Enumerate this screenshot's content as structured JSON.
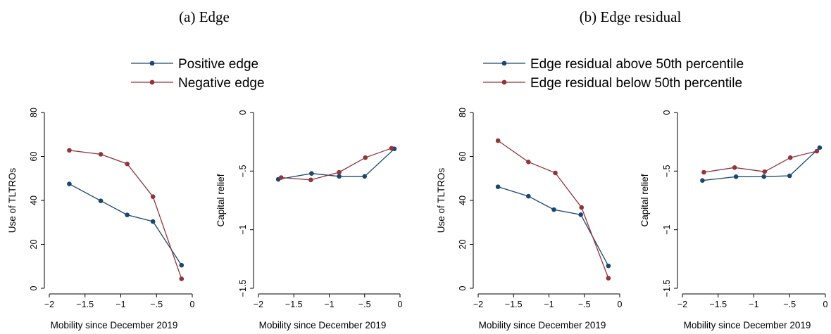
{
  "colors": {
    "navy": "#1a476f",
    "maroon": "#90353b"
  },
  "panels": [
    {
      "title": "(a) Edge",
      "legend": [
        {
          "label": "Positive edge",
          "color": "#1a476f"
        },
        {
          "label": "Negative edge",
          "color": "#90353b"
        }
      ]
    },
    {
      "title": "(b) Edge residual",
      "legend": [
        {
          "label": "Edge residual above 50th percentile",
          "color": "#1a476f"
        },
        {
          "label": "Edge residual below 50th percentile",
          "color": "#90353b"
        }
      ]
    }
  ],
  "chart_data": [
    {
      "type": "line",
      "panel": "(a) Edge",
      "xlabel": "Mobility since December 2019",
      "ylabel": "Use of TLTROs",
      "xlim": [
        -2,
        0
      ],
      "ylim": [
        0,
        80
      ],
      "xticks": [
        {
          "v": -2,
          "t": "−2"
        },
        {
          "v": -1.5,
          "t": "−1.5"
        },
        {
          "v": -1,
          "t": "−1"
        },
        {
          "v": -0.5,
          "t": "−.5"
        },
        {
          "v": 0,
          "t": "0"
        }
      ],
      "yticks": [
        {
          "v": 0,
          "t": "0"
        },
        {
          "v": 20,
          "t": "20"
        },
        {
          "v": 40,
          "t": "40"
        },
        {
          "v": 60,
          "t": "60"
        },
        {
          "v": 80,
          "t": "80"
        }
      ],
      "series": [
        {
          "name": "Positive edge",
          "color": "#1a476f",
          "x": [
            -1.72,
            -1.28,
            -0.91,
            -0.55,
            -0.15
          ],
          "y": [
            47.5,
            39.8,
            33.4,
            30.4,
            10.5
          ]
        },
        {
          "name": "Negative edge",
          "color": "#90353b",
          "x": [
            -1.72,
            -1.28,
            -0.91,
            -0.55,
            -0.15
          ],
          "y": [
            62.8,
            61.0,
            56.6,
            41.7,
            4.3
          ]
        }
      ]
    },
    {
      "type": "line",
      "panel": "(a) Edge",
      "xlabel": "Mobility since December 2019",
      "ylabel": "Capital relief",
      "xlim": [
        -2,
        0
      ],
      "ylim": [
        -1.5,
        0
      ],
      "xticks": [
        {
          "v": -2,
          "t": "−2"
        },
        {
          "v": -1.5,
          "t": "−1.5"
        },
        {
          "v": -1,
          "t": "−1"
        },
        {
          "v": -0.5,
          "t": "−.5"
        },
        {
          "v": 0,
          "t": "0"
        }
      ],
      "yticks": [
        {
          "v": 0,
          "t": "0"
        },
        {
          "v": -0.5,
          "t": "−.5"
        },
        {
          "v": -1,
          "t": "−1"
        },
        {
          "v": -1.5,
          "t": "−1.5"
        }
      ],
      "series": [
        {
          "name": "Positive edge",
          "color": "#1a476f",
          "x": [
            -1.72,
            -1.25,
            -0.86,
            -0.5,
            -0.08
          ],
          "y": [
            -0.57,
            -0.52,
            -0.545,
            -0.545,
            -0.31
          ]
        },
        {
          "name": "Negative edge",
          "color": "#90353b",
          "x": [
            -1.68,
            -1.26,
            -0.86,
            -0.49,
            -0.12
          ],
          "y": [
            -0.555,
            -0.575,
            -0.51,
            -0.385,
            -0.305
          ]
        }
      ]
    },
    {
      "type": "line",
      "panel": "(b) Edge residual",
      "xlabel": "Mobility since December 2019",
      "ylabel": "Use of TLTROs",
      "xlim": [
        -2,
        0
      ],
      "ylim": [
        0,
        80
      ],
      "xticks": [
        {
          "v": -2,
          "t": "−2"
        },
        {
          "v": -1.5,
          "t": "−1.5"
        },
        {
          "v": -1,
          "t": "−1"
        },
        {
          "v": -0.5,
          "t": "−.5"
        },
        {
          "v": 0,
          "t": "0"
        }
      ],
      "yticks": [
        {
          "v": 0,
          "t": "0"
        },
        {
          "v": 20,
          "t": "20"
        },
        {
          "v": 40,
          "t": "40"
        },
        {
          "v": 60,
          "t": "60"
        },
        {
          "v": 80,
          "t": "80"
        }
      ],
      "series": [
        {
          "name": "Edge residual above 50th percentile",
          "color": "#1a476f",
          "x": [
            -1.72,
            -1.29,
            -0.93,
            -0.55,
            -0.16
          ],
          "y": [
            46.2,
            41.9,
            35.8,
            33.5,
            10.2
          ]
        },
        {
          "name": "Edge residual below 50th percentile",
          "color": "#90353b",
          "x": [
            -1.72,
            -1.29,
            -0.91,
            -0.54,
            -0.16
          ],
          "y": [
            67.2,
            57.5,
            52.5,
            36.8,
            4.6
          ]
        }
      ]
    },
    {
      "type": "line",
      "panel": "(b) Edge residual",
      "xlabel": "Mobility since December 2019",
      "ylabel": "Capital relief",
      "xlim": [
        -2,
        0
      ],
      "ylim": [
        -1.5,
        0
      ],
      "xticks": [
        {
          "v": -2,
          "t": "−2"
        },
        {
          "v": -1.5,
          "t": "−1.5"
        },
        {
          "v": -1,
          "t": "−1"
        },
        {
          "v": -0.5,
          "t": "−.5"
        },
        {
          "v": 0,
          "t": "0"
        }
      ],
      "yticks": [
        {
          "v": 0,
          "t": "0"
        },
        {
          "v": -0.5,
          "t": "−.5"
        },
        {
          "v": -1,
          "t": "−1"
        },
        {
          "v": -1.5,
          "t": "−1.5"
        }
      ],
      "series": [
        {
          "name": "Edge residual above 50th percentile",
          "color": "#1a476f",
          "x": [
            -1.72,
            -1.25,
            -0.86,
            -0.5,
            -0.08
          ],
          "y": [
            -0.58,
            -0.548,
            -0.547,
            -0.54,
            -0.3
          ]
        },
        {
          "name": "Edge residual below 50th percentile",
          "color": "#90353b",
          "x": [
            -1.7,
            -1.27,
            -0.85,
            -0.49,
            -0.12
          ],
          "y": [
            -0.51,
            -0.47,
            -0.505,
            -0.385,
            -0.33
          ]
        }
      ]
    }
  ]
}
